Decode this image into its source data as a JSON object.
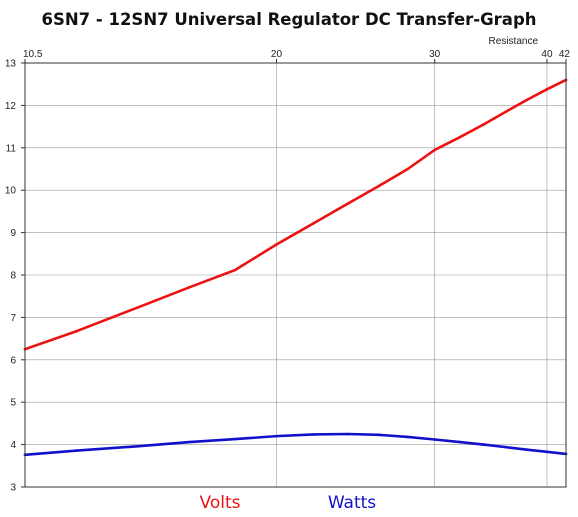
{
  "chart_data": {
    "type": "line",
    "title": "6SN7 - 12SN7 Universal Regulator DC Transfer-Graph",
    "xlabel": "Resistance",
    "ylabel": "",
    "x_scale": "log",
    "xlim": [
      10.5,
      42
    ],
    "ylim": [
      3,
      13
    ],
    "x_ticks": [
      10.5,
      20,
      30,
      40,
      42
    ],
    "x_tick_labels": [
      "10.5",
      "20",
      "30",
      "40",
      "42"
    ],
    "y_ticks": [
      3,
      4,
      5,
      6,
      7,
      8,
      9,
      10,
      11,
      12,
      13
    ],
    "y_tick_labels": [
      "3",
      "4",
      "5",
      "6",
      "7",
      "8",
      "9",
      "10",
      "11",
      "12",
      "13"
    ],
    "grid": true,
    "legend_placement": "bottom",
    "x_axis_position": "top",
    "series": [
      {
        "name": "Volts",
        "color": "#ee1111",
        "x": [
          10.5,
          12,
          14,
          16,
          18,
          20,
          22,
          24,
          26,
          28,
          30,
          32,
          34,
          36,
          38,
          40,
          42
        ],
        "y": [
          6.25,
          6.68,
          7.23,
          7.71,
          8.12,
          8.72,
          9.22,
          9.68,
          10.1,
          10.5,
          10.95,
          11.25,
          11.55,
          11.85,
          12.13,
          12.38,
          12.6
        ]
      },
      {
        "name": "Watts",
        "color": "#1111cc",
        "x": [
          10.5,
          12,
          14,
          16,
          18,
          20,
          22,
          24,
          26,
          28,
          30,
          32,
          34,
          36,
          38,
          40,
          42
        ],
        "y": [
          3.76,
          3.86,
          3.96,
          4.06,
          4.13,
          4.2,
          4.24,
          4.25,
          4.23,
          4.18,
          4.12,
          4.06,
          4.0,
          3.94,
          3.88,
          3.83,
          3.78
        ]
      }
    ]
  }
}
